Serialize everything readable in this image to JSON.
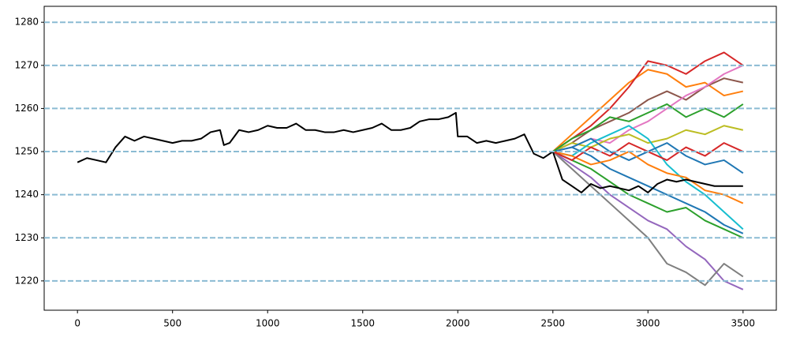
{
  "chart_data": {
    "type": "line",
    "xlim": [
      -175,
      3675
    ],
    "ylim": [
      1213.2,
      1283.7
    ],
    "xticks": [
      0,
      500,
      1000,
      1500,
      2000,
      2500,
      3000,
      3500
    ],
    "yticks": [
      1220,
      1230,
      1240,
      1250,
      1260,
      1270,
      1280
    ],
    "grid": true,
    "grid_color": "#8bbbd3",
    "series": [
      {
        "color": "#1f77b4",
        "x": [
          2500,
          2600,
          2700,
          2800,
          2900,
          3000,
          3100,
          3200,
          3300,
          3400,
          3500
        ],
        "values": [
          1250,
          1251,
          1249,
          1246,
          1244,
          1242,
          1240,
          1238,
          1236,
          1233,
          1231
        ]
      },
      {
        "color": "#ff7f0e",
        "x": [
          2500,
          2600,
          2700,
          2800,
          2900,
          3000,
          3100,
          3200,
          3300,
          3400,
          3500
        ],
        "values": [
          1250,
          1254,
          1258,
          1262,
          1266,
          1269,
          1268,
          1265,
          1266,
          1263,
          1264
        ]
      },
      {
        "color": "#2ca02c",
        "x": [
          2500,
          2600,
          2700,
          2800,
          2900,
          3000,
          3100,
          3200,
          3300,
          3400,
          3500
        ],
        "values": [
          1250,
          1248,
          1246,
          1243,
          1240,
          1238,
          1236,
          1237,
          1234,
          1232,
          1230
        ]
      },
      {
        "color": "#d62728",
        "x": [
          2500,
          2600,
          2700,
          2800,
          2900,
          3000,
          3100,
          3200,
          3300,
          3400,
          3500
        ],
        "values": [
          1250,
          1253,
          1256,
          1260,
          1265,
          1271,
          1270,
          1268,
          1271,
          1273,
          1270
        ]
      },
      {
        "color": "#9467bd",
        "x": [
          2500,
          2600,
          2700,
          2800,
          2900,
          3000,
          3100,
          3200,
          3300,
          3400,
          3500
        ],
        "values": [
          1250,
          1247,
          1244,
          1240,
          1237,
          1234,
          1232,
          1228,
          1225,
          1220,
          1218
        ]
      },
      {
        "color": "#8c564b",
        "x": [
          2500,
          2600,
          2700,
          2800,
          2900,
          3000,
          3100,
          3200,
          3300,
          3400,
          3500
        ],
        "values": [
          1250,
          1252,
          1255,
          1257,
          1259,
          1262,
          1264,
          1262,
          1265,
          1267,
          1266
        ]
      },
      {
        "color": "#e377c2",
        "x": [
          2500,
          2600,
          2700,
          2800,
          2900,
          3000,
          3100,
          3200,
          3300,
          3400,
          3500
        ],
        "values": [
          1250,
          1251,
          1253,
          1252,
          1255,
          1257,
          1260,
          1263,
          1265,
          1268,
          1270
        ]
      },
      {
        "color": "#7f7f7f",
        "x": [
          2500,
          2600,
          2700,
          2800,
          2900,
          3000,
          3100,
          3200,
          3300,
          3400,
          3500
        ],
        "values": [
          1250,
          1246,
          1242,
          1238,
          1234,
          1230,
          1224,
          1222,
          1219,
          1224,
          1221
        ]
      },
      {
        "color": "#bcbd22",
        "x": [
          2500,
          2600,
          2700,
          2800,
          2900,
          3000,
          3100,
          3200,
          3300,
          3400,
          3500
        ],
        "values": [
          1250,
          1252,
          1251,
          1253,
          1254,
          1252,
          1253,
          1255,
          1254,
          1256,
          1255
        ]
      },
      {
        "color": "#17becf",
        "x": [
          2500,
          2600,
          2700,
          2800,
          2900,
          3000,
          3100,
          3200,
          3300,
          3400,
          3500
        ],
        "values": [
          1250,
          1249,
          1252,
          1254,
          1256,
          1253,
          1247,
          1243,
          1240,
          1236,
          1232
        ]
      },
      {
        "color": "#1f77b4",
        "x": [
          2500,
          2600,
          2700,
          2800,
          2900,
          3000,
          3100,
          3200,
          3300,
          3400,
          3500
        ],
        "values": [
          1250,
          1251,
          1253,
          1250,
          1248,
          1250,
          1252,
          1249,
          1247,
          1248,
          1245
        ]
      },
      {
        "color": "#ff7f0e",
        "x": [
          2500,
          2600,
          2700,
          2800,
          2900,
          3000,
          3100,
          3200,
          3300,
          3400,
          3500
        ],
        "values": [
          1250,
          1249,
          1247,
          1248,
          1250,
          1247,
          1245,
          1244,
          1241,
          1240,
          1238
        ]
      },
      {
        "color": "#2ca02c",
        "x": [
          2500,
          2600,
          2700,
          2800,
          2900,
          3000,
          3100,
          3200,
          3300,
          3400,
          3500
        ],
        "values": [
          1250,
          1253,
          1255,
          1258,
          1257,
          1259,
          1261,
          1258,
          1260,
          1258,
          1261
        ]
      },
      {
        "color": "#d62728",
        "x": [
          2500,
          2600,
          2700,
          2800,
          2900,
          3000,
          3100,
          3200,
          3300,
          3400,
          3500
        ],
        "values": [
          1250,
          1248,
          1251,
          1249,
          1252,
          1250,
          1248,
          1251,
          1249,
          1252,
          1250
        ]
      },
      {
        "color": "#000000",
        "x": [
          0,
          50,
          100,
          150,
          200,
          250,
          300,
          350,
          400,
          450,
          500,
          550,
          600,
          650,
          700,
          750,
          770,
          800,
          850,
          900,
          950,
          1000,
          1050,
          1100,
          1150,
          1200,
          1250,
          1300,
          1350,
          1400,
          1450,
          1500,
          1550,
          1600,
          1650,
          1700,
          1750,
          1800,
          1850,
          1900,
          1950,
          1990,
          2000,
          2050,
          2100,
          2150,
          2200,
          2250,
          2300,
          2350,
          2400,
          2450,
          2500,
          2550,
          2600,
          2650,
          2700,
          2750,
          2800,
          2850,
          2900,
          2950,
          3000,
          3050,
          3100,
          3150,
          3200,
          3250,
          3300,
          3350,
          3400,
          3450,
          3500
        ],
        "values": [
          1247.5,
          1248.5,
          1248,
          1247.5,
          1251,
          1253.5,
          1252.5,
          1253.5,
          1253,
          1252.5,
          1252,
          1252.5,
          1252.5,
          1253,
          1254.5,
          1255,
          1251.5,
          1252,
          1255,
          1254.5,
          1255,
          1256,
          1255.5,
          1255.5,
          1256.5,
          1255,
          1255,
          1254.5,
          1254.5,
          1255,
          1254.5,
          1255,
          1255.5,
          1256.5,
          1255,
          1255,
          1255.5,
          1257,
          1257.5,
          1257.5,
          1258,
          1259,
          1253.5,
          1253.5,
          1252,
          1252.5,
          1252,
          1252.5,
          1253,
          1254,
          1249.5,
          1248.5,
          1250,
          1243.5,
          1242,
          1240.5,
          1242.5,
          1241.5,
          1242,
          1241.5,
          1241,
          1242,
          1240.5,
          1242.5,
          1243.5,
          1243,
          1243.5,
          1243,
          1242.5,
          1242,
          1242,
          1242,
          1242
        ]
      }
    ]
  }
}
